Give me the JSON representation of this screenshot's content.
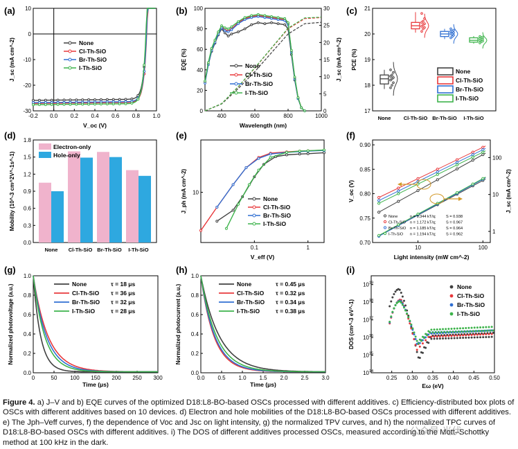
{
  "colors": {
    "None": "#404040",
    "Cl": "#e8383b",
    "Br": "#2f6fd2",
    "I": "#3db34b",
    "electron_bar": "#f0b3cc",
    "hole_bar": "#2ea8e0"
  },
  "caption": {
    "label": "Figure 4.",
    "text": "a) J–V and b) EQE curves of the optimized D18:L8-BO-based OSCs processed with different additives. c) Efficiency-distributed box plots of OSCs with different additives based on 10 devices. d) Electron and hole mobilities of the D18:L8-BO-based OSCs processed with different additives. e) The Jph–Veff curves, f) the dependence of Voc and Jsc on light intensity, g) the normalized TPV curves, and h) the normalized TPC curves of D18:L8-BO-based OSCs with different additives. i) The DOS of different additives processed OSCs, measured according to the Mott–Schottky method at 100 kHz in the dark."
  },
  "watermark": "公众号·光伏",
  "chart_data": [
    {
      "panel": "a",
      "type": "line",
      "xlabel": "V_oc (V)",
      "ylabel": "J_sc (mA cm^-2)",
      "xlim": [
        -0.2,
        1.0
      ],
      "ylim": [
        -30,
        10
      ],
      "xticks": [
        -0.2,
        0.0,
        0.2,
        0.4,
        0.6,
        0.8,
        1.0
      ],
      "yticks": [
        -30,
        -20,
        -10,
        0,
        10
      ],
      "series": [
        {
          "name": "None",
          "key": "None",
          "jsc": -25.9,
          "voc": 0.9
        },
        {
          "name": "Cl-Th-SiO",
          "key": "Cl",
          "jsc": -27.1,
          "voc": 0.905
        },
        {
          "name": "Br-Th-SiO",
          "key": "Br",
          "jsc": -26.8,
          "voc": 0.903
        },
        {
          "name": "I-Th-SiO",
          "key": "I",
          "jsc": -27.6,
          "voc": 0.897
        }
      ]
    },
    {
      "panel": "b",
      "type": "line",
      "xlabel": "Wavelength (nm)",
      "ylabel": "EQE (%)",
      "y2label": "J_sc (mA cm^-2)",
      "xlim": [
        300,
        1000
      ],
      "ylim": [
        0,
        100
      ],
      "y2lim": [
        0,
        30
      ],
      "xticks": [
        400,
        600,
        800,
        1000
      ],
      "yticks": [
        0,
        20,
        40,
        60,
        80,
        100
      ],
      "y2ticks": [
        0,
        5,
        10,
        15,
        20,
        25,
        30
      ],
      "series": [
        {
          "name": "None",
          "key": "None",
          "x": [
            300,
            320,
            340,
            360,
            380,
            400,
            420,
            440,
            460,
            500,
            540,
            580,
            620,
            660,
            700,
            740,
            780,
            800,
            820,
            840,
            860,
            880,
            900
          ],
          "y": [
            28,
            45,
            58,
            66,
            74,
            80,
            76,
            73,
            75,
            77,
            80,
            84,
            86,
            85,
            86,
            85,
            84,
            80,
            55,
            30,
            12,
            3,
            0
          ]
        },
        {
          "name": "Cl-Th-SiO",
          "key": "Cl",
          "x": [
            300,
            320,
            340,
            360,
            380,
            400,
            420,
            440,
            460,
            500,
            540,
            580,
            620,
            660,
            700,
            740,
            780,
            800,
            820,
            840,
            860,
            880,
            900
          ],
          "y": [
            28,
            46,
            60,
            68,
            76,
            82,
            79,
            78,
            80,
            86,
            90,
            92,
            93,
            92,
            91,
            90,
            89,
            85,
            58,
            32,
            13,
            3,
            0
          ]
        },
        {
          "name": "Br-Th-SiO",
          "key": "Br",
          "x": [
            300,
            320,
            340,
            360,
            380,
            400,
            420,
            440,
            460,
            500,
            540,
            580,
            620,
            660,
            700,
            740,
            780,
            800,
            820,
            840,
            860,
            880,
            900
          ],
          "y": [
            27,
            45,
            59,
            67,
            75,
            81,
            78,
            77,
            79,
            85,
            89,
            91,
            92,
            91,
            90,
            89,
            88,
            84,
            57,
            31,
            12,
            3,
            0
          ]
        },
        {
          "name": "I-Th-SiO",
          "key": "I",
          "x": [
            300,
            320,
            340,
            360,
            380,
            400,
            420,
            440,
            460,
            500,
            540,
            580,
            620,
            660,
            700,
            740,
            780,
            800,
            820,
            840,
            860,
            880,
            900
          ],
          "y": [
            29,
            47,
            61,
            69,
            77,
            83,
            81,
            80,
            82,
            87,
            91,
            93,
            94,
            93,
            92,
            91,
            90,
            86,
            59,
            33,
            13,
            3,
            0
          ]
        }
      ],
      "integrated": [
        {
          "key": "None",
          "x": [
            300,
            400,
            500,
            600,
            700,
            800,
            900,
            1000
          ],
          "y": [
            0,
            2.0,
            6.5,
            11.5,
            17.0,
            22.5,
            25.5,
            25.9
          ]
        },
        {
          "key": "Cl",
          "x": [
            300,
            400,
            500,
            600,
            700,
            800,
            900,
            1000
          ],
          "y": [
            0,
            2.1,
            7.0,
            12.5,
            18.3,
            24.0,
            27.0,
            27.3
          ]
        },
        {
          "key": "I",
          "x": [
            300,
            400,
            500,
            600,
            700,
            800,
            900,
            1000
          ],
          "y": [
            0,
            2.1,
            7.1,
            12.6,
            18.4,
            24.2,
            27.2,
            27.4
          ]
        }
      ]
    },
    {
      "panel": "c",
      "type": "box",
      "ylabel": "PCE (%)",
      "ylim": [
        17,
        21
      ],
      "yticks": [
        17,
        18,
        19,
        20,
        21
      ],
      "categories": [
        "None",
        "Cl-Th-SiO",
        "Br-Th-SiO",
        "I-Th-SiO"
      ],
      "series": [
        {
          "key": "None",
          "q1": 18.05,
          "median": 18.25,
          "q3": 18.4,
          "min": 17.85,
          "max": 18.6,
          "points": [
            17.9,
            18.0,
            18.1,
            18.2,
            18.25,
            18.3,
            18.35,
            18.4,
            18.5,
            18.6
          ]
        },
        {
          "key": "Cl",
          "q1": 20.2,
          "median": 20.32,
          "q3": 20.45,
          "min": 20.05,
          "max": 20.85,
          "points": [
            20.1,
            20.2,
            20.25,
            20.3,
            20.35,
            20.4,
            20.45,
            20.5,
            20.6,
            20.8
          ]
        },
        {
          "key": "Br",
          "q1": 19.9,
          "median": 20.0,
          "q3": 20.1,
          "min": 19.8,
          "max": 20.2,
          "points": [
            19.85,
            19.9,
            19.95,
            20.0,
            20.0,
            20.05,
            20.1,
            20.1,
            20.15,
            20.2
          ]
        },
        {
          "key": "I",
          "q1": 19.68,
          "median": 19.75,
          "q3": 19.85,
          "min": 19.62,
          "max": 19.92,
          "points": [
            19.65,
            19.7,
            19.72,
            19.75,
            19.78,
            19.8,
            19.82,
            19.85,
            19.88,
            19.9
          ]
        }
      ],
      "legend": [
        "None",
        "Cl-Th-SiO",
        "Br-Th-SiO",
        "I-Th-SiO"
      ]
    },
    {
      "panel": "d",
      "type": "bar",
      "ylabel": "Mobility (10^-3 cm^2V^-1s^-1)",
      "ylim": [
        0.0,
        1.8
      ],
      "yticks": [
        0.0,
        0.3,
        0.6,
        0.9,
        1.2,
        1.5,
        1.8
      ],
      "categories": [
        "None",
        "Cl-Th-SiO",
        "Br-Th-SiO",
        "I-Th-SiO"
      ],
      "series": [
        {
          "name": "Electron-only",
          "values": [
            1.05,
            1.6,
            1.59,
            1.27
          ]
        },
        {
          "name": "Hole-only",
          "values": [
            0.9,
            1.49,
            1.5,
            1.17
          ]
        }
      ]
    },
    {
      "panel": "e",
      "type": "line",
      "xlabel": "V_eff (V)",
      "ylabel": "J_ph (mA cm^-2)",
      "xscale": "log",
      "yscale": "log",
      "xlim": [
        0.01,
        2
      ],
      "ylim": [
        3,
        35
      ],
      "xticks": [
        0.1,
        1
      ],
      "yticks": [
        10
      ],
      "series": [
        {
          "name": "None",
          "key": "None",
          "x": [
            0.02,
            0.04,
            0.06,
            0.1,
            0.15,
            0.25,
            0.4,
            0.7,
            1.0,
            2.0
          ],
          "y": [
            5.0,
            6.5,
            9.0,
            14.5,
            19.5,
            23.5,
            24.5,
            25.0,
            25.2,
            25.8
          ]
        },
        {
          "name": "Cl-Th-SiO",
          "key": "Cl",
          "x": [
            0.01,
            0.02,
            0.04,
            0.07,
            0.12,
            0.2,
            0.4,
            0.7,
            1.0,
            2.0
          ],
          "y": [
            4.0,
            7.0,
            12.0,
            18.0,
            23.0,
            25.5,
            26.3,
            26.8,
            27.0,
            27.4
          ]
        },
        {
          "name": "Br-Th-SiO",
          "key": "Br",
          "x": [
            0.02,
            0.04,
            0.07,
            0.12,
            0.2,
            0.4,
            0.7,
            1.0,
            2.0
          ],
          "y": [
            7.0,
            12.0,
            18.0,
            22.5,
            25.0,
            26.0,
            26.5,
            26.8,
            27.2
          ]
        },
        {
          "name": "I-Th-SiO",
          "key": "I",
          "x": [
            0.03,
            0.05,
            0.08,
            0.12,
            0.2,
            0.4,
            0.7,
            1.0,
            2.0
          ],
          "y": [
            4.2,
            7.5,
            12.0,
            17.0,
            23.0,
            26.0,
            26.8,
            27.0,
            27.5
          ]
        }
      ]
    },
    {
      "panel": "f",
      "type": "scatter",
      "xlabel": "Light intensity (mW cm^-2)",
      "ylabel": "V_oc (V)",
      "y2label": "J_sc (mA cm^-2)",
      "xscale": "log",
      "xlim": [
        2,
        130
      ],
      "ylim": [
        0.7,
        0.91
      ],
      "y2lim_log": [
        0.5,
        300
      ],
      "xticks": [
        10,
        100
      ],
      "yticks": [
        0.7,
        0.75,
        0.8,
        0.85,
        0.9
      ],
      "y2ticks": [
        1,
        10,
        100
      ],
      "voc_series": [
        {
          "key": "None",
          "n": 1.344,
          "v100": 0.88
        },
        {
          "key": "Cl",
          "n": 1.172,
          "v100": 0.895
        },
        {
          "key": "Br",
          "n": 1.185,
          "v100": 0.89
        },
        {
          "key": "I",
          "n": 1.194,
          "v100": 0.885
        }
      ],
      "jsc_series": [
        {
          "key": "None",
          "S": 0.938,
          "j100": 24.0
        },
        {
          "key": "Cl",
          "S": 0.967,
          "j100": 26.5
        },
        {
          "key": "Br",
          "S": 0.964,
          "j100": 26.0
        },
        {
          "key": "I",
          "S": 0.962,
          "j100": 27.0
        }
      ],
      "annotations": [
        {
          "name": "None",
          "n": "n = 1.344 kT/q;",
          "s": "S = 0.938"
        },
        {
          "name": "Cl-Th-SiO",
          "n": "n = 1.172 kT/q;",
          "s": "S = 0.967"
        },
        {
          "name": "Br-Th-SiO",
          "n": "n = 1.185 kT/q;",
          "s": "S = 0.964"
        },
        {
          "name": "I-Th-SiO",
          "n": "n = 1.194 kT/q;",
          "s": "S = 0.962"
        }
      ]
    },
    {
      "panel": "g",
      "type": "line",
      "xlabel": "Time (μs)",
      "ylabel": "Normalized photovoltage (a.u.)",
      "xlim": [
        0,
        300
      ],
      "ylim": [
        0.0,
        1.0
      ],
      "xticks": [
        0,
        50,
        100,
        150,
        200,
        250,
        300
      ],
      "yticks": [
        0.0,
        0.2,
        0.4,
        0.6,
        0.8,
        1.0
      ],
      "series": [
        {
          "name": "None",
          "key": "None",
          "tau": 18,
          "tau_label": "τ = 18 μs"
        },
        {
          "name": "Cl-Th-SiO",
          "key": "Cl",
          "tau": 36,
          "tau_label": "τ = 36 μs"
        },
        {
          "name": "Br-Th-SiO",
          "key": "Br",
          "tau": 32,
          "tau_label": "τ = 32 μs"
        },
        {
          "name": "I-Th-SiO",
          "key": "I",
          "tau": 28,
          "tau_label": "τ = 28 μs"
        }
      ]
    },
    {
      "panel": "h",
      "type": "line",
      "xlabel": "Time (μs)",
      "ylabel": "Normalized photocurrent (a.u.)",
      "xlim": [
        0,
        3.0
      ],
      "ylim": [
        0.0,
        1.0
      ],
      "xticks": [
        0.0,
        0.5,
        1.0,
        1.5,
        2.0,
        2.5,
        3.0
      ],
      "yticks": [
        0.0,
        0.2,
        0.4,
        0.6,
        0.8,
        1.0
      ],
      "series": [
        {
          "name": "None",
          "key": "None",
          "tau": 0.45,
          "tau_label": "τ = 0.45 μs"
        },
        {
          "name": "Cl-Th-SiO",
          "key": "Cl",
          "tau": 0.32,
          "tau_label": "τ = 0.32 μs"
        },
        {
          "name": "Br-Th-SiO",
          "key": "Br",
          "tau": 0.34,
          "tau_label": "τ = 0.34 μs"
        },
        {
          "name": "I-Th-SiO",
          "key": "I",
          "tau": 0.38,
          "tau_label": "τ = 0.38 μs"
        }
      ]
    },
    {
      "panel": "i",
      "type": "scatter",
      "xlabel": "Eω (eV)",
      "ylabel": "DOS (cm^-3 eV^-1)",
      "yscale": "log",
      "xlim": [
        0.2,
        0.5
      ],
      "ylim_exp": [
        14,
        19.5
      ],
      "xticks": [
        0.25,
        0.3,
        0.35,
        0.4,
        0.45,
        0.5
      ],
      "ytick_exps": [
        14,
        15,
        16,
        17,
        18,
        19
      ],
      "series": [
        {
          "name": "None",
          "key": "None",
          "peak_E": 0.268,
          "peak_exp": 18.75,
          "dip_E": 0.315,
          "dip_exp": 14.8,
          "tail_exp": 16.0
        },
        {
          "name": "Cl-Th-SiO",
          "key": "Cl",
          "peak_E": 0.272,
          "peak_exp": 18.15,
          "dip_E": 0.31,
          "dip_exp": 15.4,
          "tail_exp": 16.15
        },
        {
          "name": "Br-Th-SiO",
          "key": "Br",
          "peak_E": 0.271,
          "peak_exp": 18.1,
          "dip_E": 0.312,
          "dip_exp": 15.6,
          "tail_exp": 16.25
        },
        {
          "name": "I-Th-SiO",
          "key": "I",
          "peak_E": 0.27,
          "peak_exp": 18.05,
          "dip_E": 0.313,
          "dip_exp": 15.7,
          "tail_exp": 16.35
        }
      ]
    }
  ]
}
